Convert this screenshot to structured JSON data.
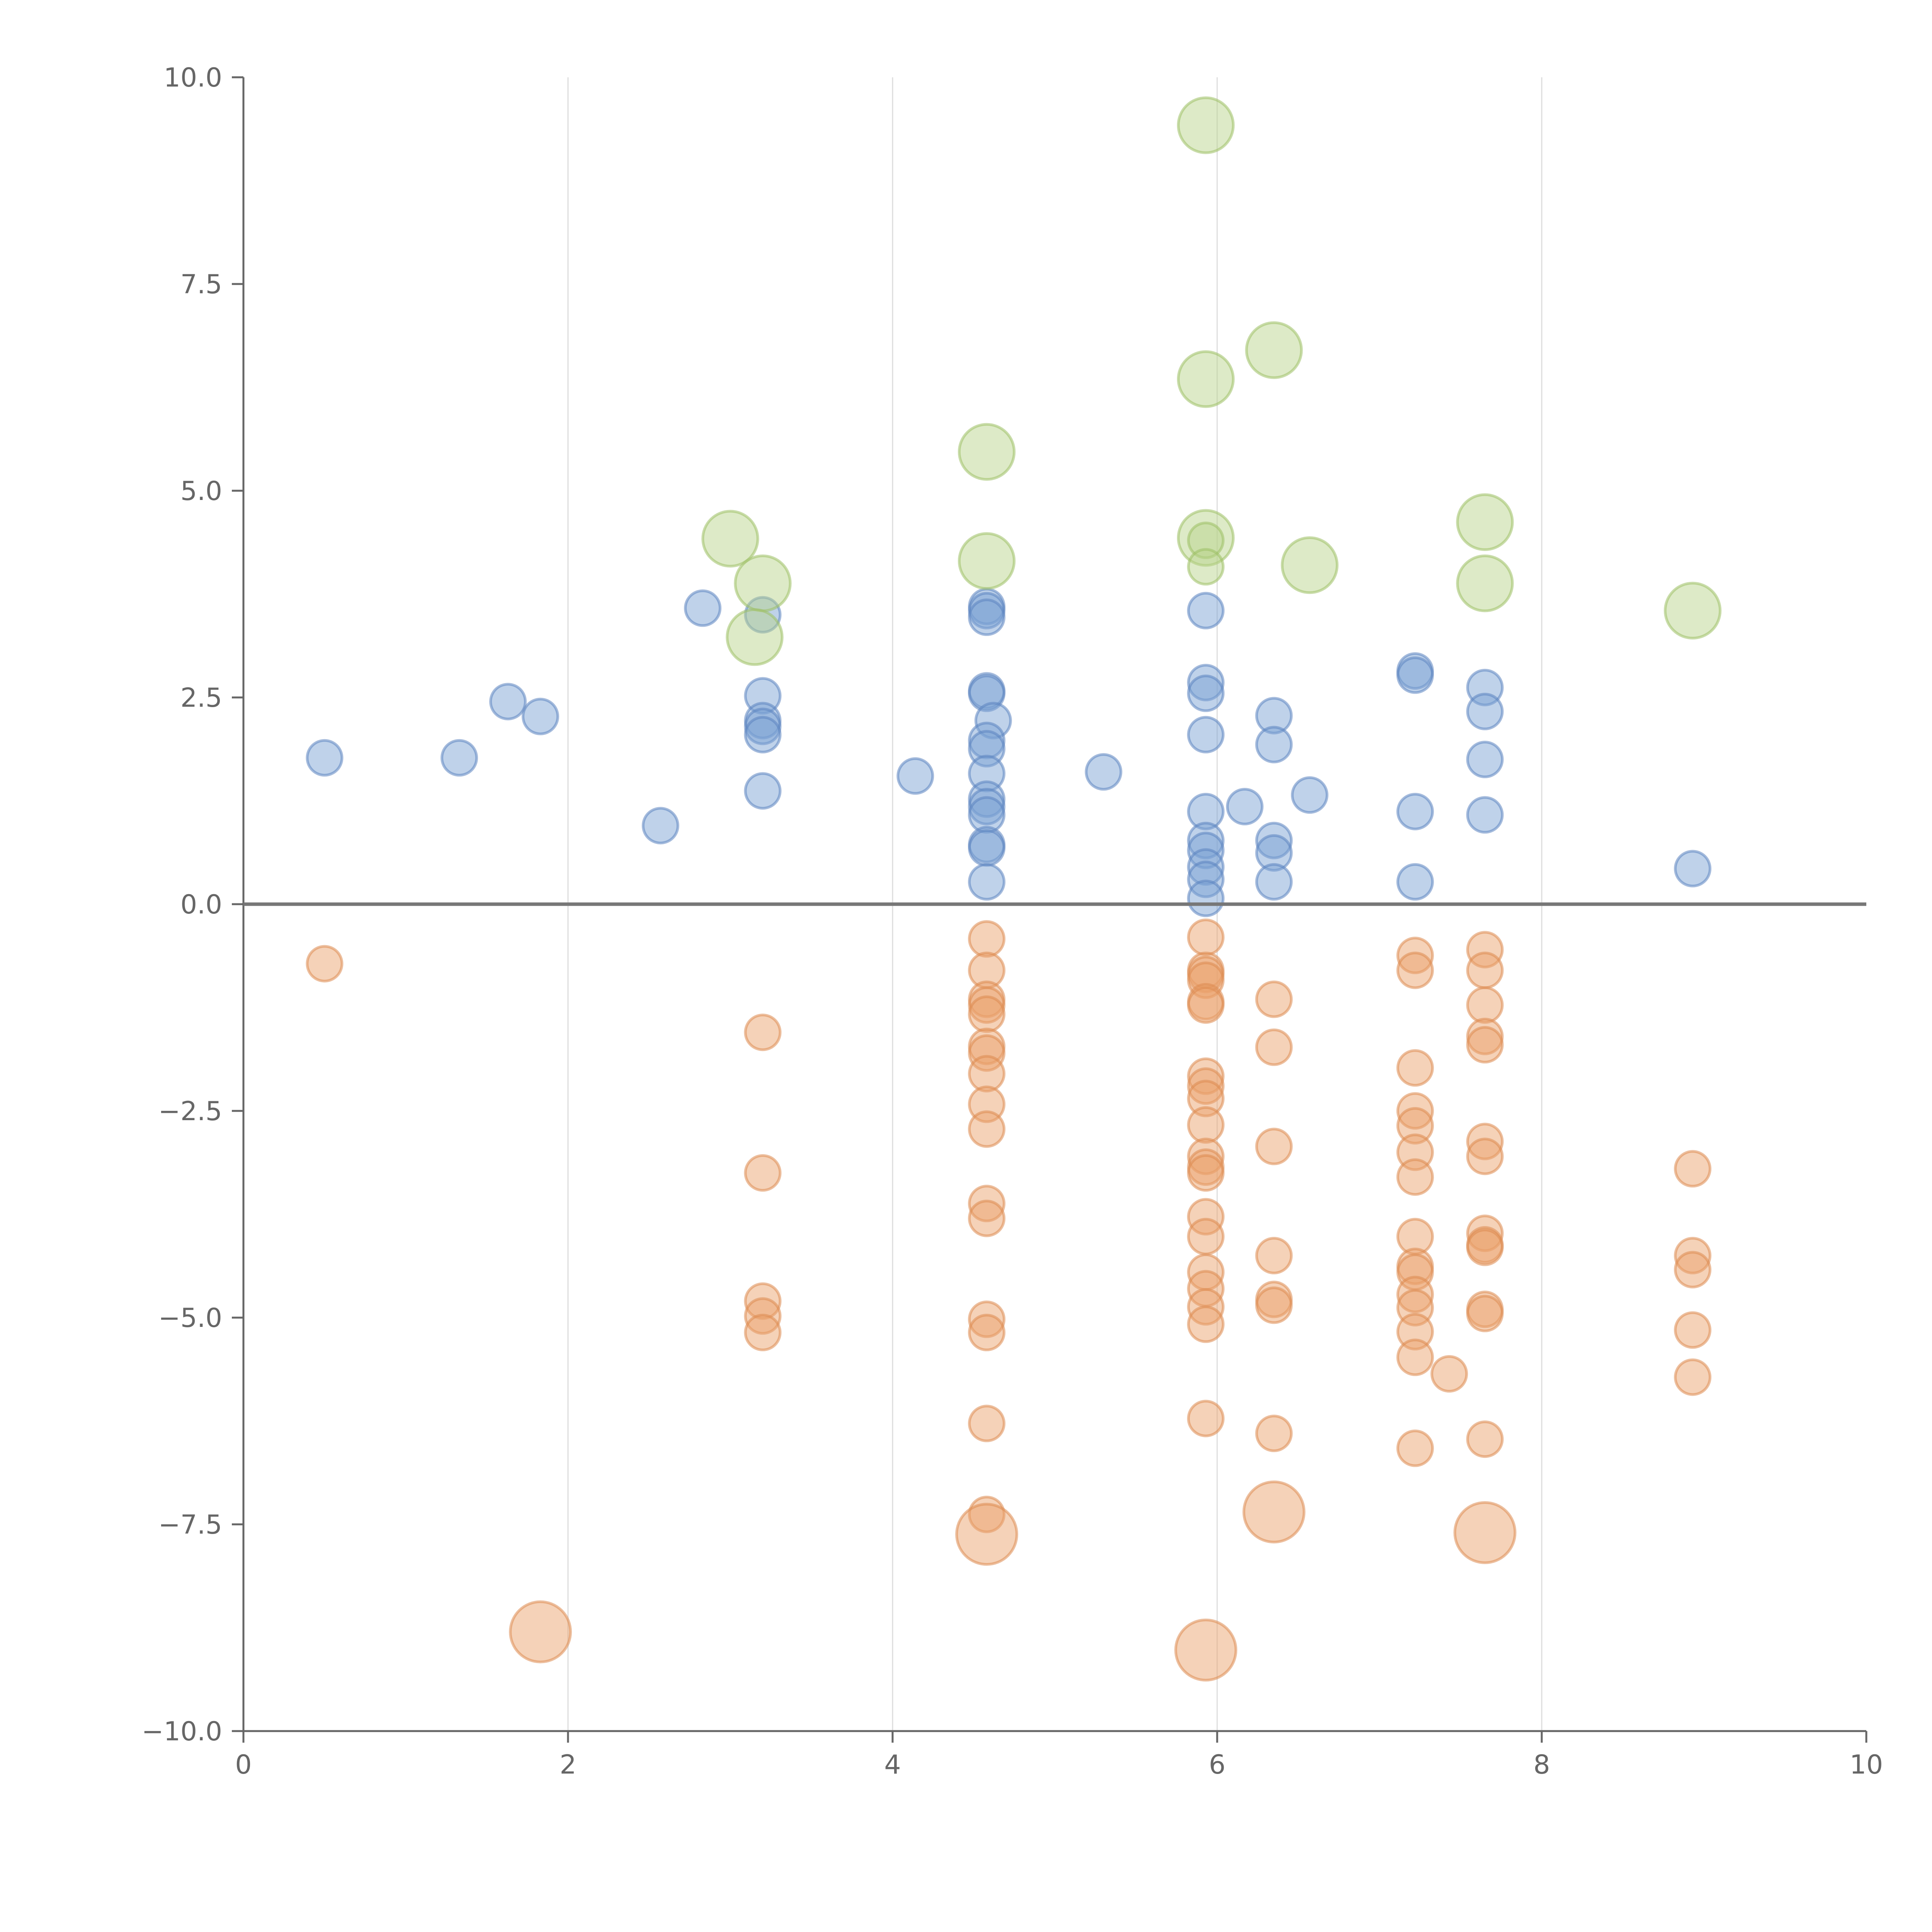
{
  "chart_data": {
    "type": "scatter",
    "title": "",
    "xlabel": "",
    "ylabel": "",
    "xlim": [
      0,
      10
    ],
    "ylim": [
      -10,
      10
    ],
    "xticks": [
      0,
      2,
      4,
      6,
      8,
      10
    ],
    "yticks": [
      -10,
      -7.5,
      -5,
      -2.5,
      0,
      2.5,
      5,
      7.5,
      10
    ],
    "xtick_labels": [
      "0",
      "2",
      "4",
      "6",
      "8",
      "10"
    ],
    "ytick_labels": [
      "−10.0",
      "−7.5",
      "−5.0",
      "−2.5",
      "0.0",
      "2.5",
      "5.0",
      "7.5",
      "10.0"
    ],
    "grid": "vertical",
    "series": [
      {
        "color": "#7aa0d4",
        "stroke": "#5b84c0",
        "points": [
          [
            0.5,
            1.77,
            1
          ],
          [
            1.33,
            1.77,
            1
          ],
          [
            1.63,
            2.45,
            1
          ],
          [
            1.83,
            2.27,
            1
          ],
          [
            2.57,
            0.95,
            1
          ],
          [
            2.83,
            3.58,
            1
          ],
          [
            3.2,
            3.5,
            1
          ],
          [
            3.2,
            2.52,
            1
          ],
          [
            3.2,
            2.22,
            1
          ],
          [
            3.2,
            2.15,
            1
          ],
          [
            3.2,
            2.05,
            1
          ],
          [
            3.2,
            1.37,
            1
          ],
          [
            4.14,
            1.55,
            1
          ],
          [
            4.58,
            3.6,
            1
          ],
          [
            4.58,
            3.55,
            1
          ],
          [
            4.58,
            3.47,
            1
          ],
          [
            4.58,
            2.58,
            1
          ],
          [
            4.58,
            2.55,
            1
          ],
          [
            4.62,
            2.22,
            1
          ],
          [
            4.58,
            1.98,
            1
          ],
          [
            4.58,
            1.88,
            1
          ],
          [
            4.58,
            1.58,
            1
          ],
          [
            4.58,
            1.27,
            1
          ],
          [
            4.58,
            1.18,
            1
          ],
          [
            4.58,
            1.08,
            1
          ],
          [
            4.58,
            0.72,
            1
          ],
          [
            4.58,
            0.68,
            1
          ],
          [
            4.58,
            0.27,
            1
          ],
          [
            5.3,
            1.6,
            1
          ],
          [
            5.93,
            3.55,
            1
          ],
          [
            5.93,
            2.68,
            1
          ],
          [
            5.93,
            2.55,
            1
          ],
          [
            5.93,
            2.05,
            1
          ],
          [
            5.93,
            1.12,
            1
          ],
          [
            5.93,
            0.77,
            1
          ],
          [
            5.93,
            0.65,
            1
          ],
          [
            5.93,
            0.45,
            1
          ],
          [
            5.93,
            0.3,
            1
          ],
          [
            5.93,
            0.07,
            1
          ],
          [
            6.17,
            1.18,
            1
          ],
          [
            6.35,
            2.28,
            1
          ],
          [
            6.35,
            1.93,
            1
          ],
          [
            6.35,
            0.77,
            1
          ],
          [
            6.35,
            0.62,
            1
          ],
          [
            6.35,
            0.27,
            1
          ],
          [
            6.57,
            1.32,
            1
          ],
          [
            7.22,
            2.82,
            1
          ],
          [
            7.22,
            2.77,
            1
          ],
          [
            7.22,
            1.12,
            1
          ],
          [
            7.22,
            0.27,
            1
          ],
          [
            7.65,
            2.62,
            1
          ],
          [
            7.65,
            2.33,
            1
          ],
          [
            7.65,
            1.75,
            1
          ],
          [
            7.65,
            1.08,
            1
          ],
          [
            8.93,
            0.43,
            1
          ]
        ]
      },
      {
        "color": "#eaa06b",
        "stroke": "#dd8a50",
        "points": [
          [
            0.5,
            -0.72,
            1
          ],
          [
            1.83,
            -8.8,
            3
          ],
          [
            3.2,
            -1.55,
            1
          ],
          [
            3.2,
            -3.25,
            1
          ],
          [
            3.2,
            -4.8,
            1
          ],
          [
            3.2,
            -4.98,
            1
          ],
          [
            3.2,
            -5.18,
            1
          ],
          [
            4.58,
            -0.42,
            1
          ],
          [
            4.58,
            -0.8,
            1
          ],
          [
            4.58,
            -1.15,
            1
          ],
          [
            4.58,
            -1.22,
            1
          ],
          [
            4.58,
            -1.33,
            1
          ],
          [
            4.58,
            -1.72,
            1
          ],
          [
            4.58,
            -1.8,
            1
          ],
          [
            4.58,
            -2.05,
            1
          ],
          [
            4.58,
            -2.42,
            1
          ],
          [
            4.58,
            -2.72,
            1
          ],
          [
            4.58,
            -3.62,
            1
          ],
          [
            4.58,
            -3.8,
            1
          ],
          [
            4.58,
            -5.02,
            1
          ],
          [
            4.58,
            -5.18,
            1
          ],
          [
            4.58,
            -6.28,
            1
          ],
          [
            4.58,
            -7.38,
            1
          ],
          [
            4.58,
            -7.62,
            3
          ],
          [
            5.93,
            -0.4,
            1
          ],
          [
            5.93,
            -0.8,
            1
          ],
          [
            5.93,
            -0.85,
            1
          ],
          [
            5.93,
            -0.92,
            1
          ],
          [
            5.93,
            -1.18,
            1
          ],
          [
            5.93,
            -1.22,
            1
          ],
          [
            5.93,
            -2.08,
            1
          ],
          [
            5.93,
            -2.2,
            1
          ],
          [
            5.93,
            -2.35,
            1
          ],
          [
            5.93,
            -2.67,
            1
          ],
          [
            5.93,
            -3.05,
            1
          ],
          [
            5.93,
            -3.18,
            1
          ],
          [
            5.93,
            -3.25,
            1
          ],
          [
            5.93,
            -3.78,
            1
          ],
          [
            5.93,
            -4.02,
            1
          ],
          [
            5.93,
            -4.45,
            1
          ],
          [
            5.93,
            -4.65,
            1
          ],
          [
            5.93,
            -4.87,
            1
          ],
          [
            5.93,
            -5.08,
            1
          ],
          [
            5.93,
            -6.22,
            1
          ],
          [
            5.93,
            -9.02,
            3
          ],
          [
            6.35,
            -1.15,
            1
          ],
          [
            6.35,
            -1.73,
            1
          ],
          [
            6.35,
            -2.93,
            1
          ],
          [
            6.35,
            -4.25,
            1
          ],
          [
            6.35,
            -4.78,
            1
          ],
          [
            6.35,
            -4.85,
            1
          ],
          [
            6.35,
            -6.4,
            1
          ],
          [
            6.35,
            -7.35,
            3
          ],
          [
            7.22,
            -0.62,
            1
          ],
          [
            7.22,
            -0.8,
            1
          ],
          [
            7.22,
            -1.98,
            1
          ],
          [
            7.22,
            -2.5,
            1
          ],
          [
            7.22,
            -2.68,
            1
          ],
          [
            7.22,
            -3.0,
            1
          ],
          [
            7.22,
            -3.3,
            1
          ],
          [
            7.22,
            -4.02,
            1
          ],
          [
            7.22,
            -4.38,
            1
          ],
          [
            7.22,
            -4.45,
            1
          ],
          [
            7.22,
            -4.72,
            1
          ],
          [
            7.22,
            -4.88,
            1
          ],
          [
            7.22,
            -5.17,
            1
          ],
          [
            7.22,
            -5.48,
            1
          ],
          [
            7.22,
            -6.58,
            1
          ],
          [
            7.43,
            -5.68,
            1
          ],
          [
            7.65,
            -0.55,
            1
          ],
          [
            7.65,
            -0.8,
            1
          ],
          [
            7.65,
            -1.22,
            1
          ],
          [
            7.65,
            -1.6,
            1
          ],
          [
            7.65,
            -1.7,
            1
          ],
          [
            7.65,
            -2.87,
            1
          ],
          [
            7.65,
            -3.05,
            1
          ],
          [
            7.65,
            -3.98,
            1
          ],
          [
            7.65,
            -4.12,
            1
          ],
          [
            7.65,
            -4.15,
            1
          ],
          [
            7.65,
            -4.9,
            1
          ],
          [
            7.65,
            -4.95,
            1
          ],
          [
            7.65,
            -6.47,
            1
          ],
          [
            7.65,
            -7.6,
            3
          ],
          [
            8.93,
            -3.2,
            1
          ],
          [
            8.93,
            -4.25,
            1
          ],
          [
            8.93,
            -4.42,
            1
          ],
          [
            8.93,
            -5.15,
            1
          ],
          [
            8.93,
            -5.72,
            1
          ]
        ]
      },
      {
        "color": "#b8d48a",
        "stroke": "#9cc064",
        "points": [
          [
            3.0,
            4.42,
            2.5
          ],
          [
            3.2,
            3.88,
            2.5
          ],
          [
            3.15,
            3.23,
            2.5
          ],
          [
            4.58,
            5.47,
            2.5
          ],
          [
            4.58,
            4.15,
            2.5
          ],
          [
            5.93,
            9.42,
            2.5
          ],
          [
            5.93,
            6.35,
            2.5
          ],
          [
            5.93,
            4.43,
            2.5
          ],
          [
            5.93,
            4.4,
            1
          ],
          [
            5.93,
            4.08,
            1
          ],
          [
            6.35,
            6.7,
            2.5
          ],
          [
            6.57,
            4.1,
            2.5
          ],
          [
            7.65,
            4.62,
            2.5
          ],
          [
            7.65,
            3.88,
            2.5
          ],
          [
            8.93,
            3.55,
            2.5
          ]
        ]
      }
    ]
  }
}
